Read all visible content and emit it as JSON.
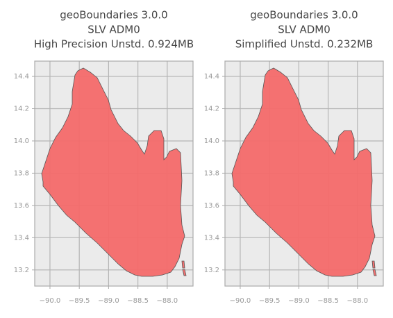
{
  "chart_data": [
    {
      "type": "map",
      "title": [
        "geoBoundaries 3.0.0",
        "SLV ADM0",
        "High Precision Unstd. 0.924MB"
      ],
      "xlim": [
        -90.26,
        -87.56
      ],
      "ylim": [
        13.1,
        14.495
      ],
      "xticks": [
        {
          "value": -90,
          "label": "−90.0"
        },
        {
          "value": -89.5,
          "label": "−89.5"
        },
        {
          "value": -89,
          "label": "−89.0"
        },
        {
          "value": -88.5,
          "label": "−88.5"
        },
        {
          "value": -88,
          "label": "−88.0"
        }
      ],
      "yticks": [
        13.2,
        13.4,
        13.6,
        13.8,
        {
          "value": 14,
          "label": "14.0"
        },
        14.2,
        14.4
      ],
      "grid": true,
      "color": "#f46a6a"
    },
    {
      "type": "map",
      "title": [
        "geoBoundaries 3.0.0",
        "SLV ADM0",
        "Simplified Unstd. 0.232MB"
      ],
      "xlim": [
        -90.26,
        -87.56
      ],
      "ylim": [
        13.1,
        14.495
      ],
      "xticks": [
        {
          "value": -90,
          "label": "−90.0"
        },
        {
          "value": -89.5,
          "label": "−89.5"
        },
        {
          "value": -89,
          "label": "−89.0"
        },
        {
          "value": -88.5,
          "label": "−88.5"
        },
        {
          "value": -88,
          "label": "−88.0"
        }
      ],
      "yticks": [
        13.2,
        13.4,
        13.6,
        13.8,
        {
          "value": 14,
          "label": "14.0"
        },
        14.2,
        14.4
      ],
      "grid": true,
      "color": "#f46a6a"
    }
  ]
}
